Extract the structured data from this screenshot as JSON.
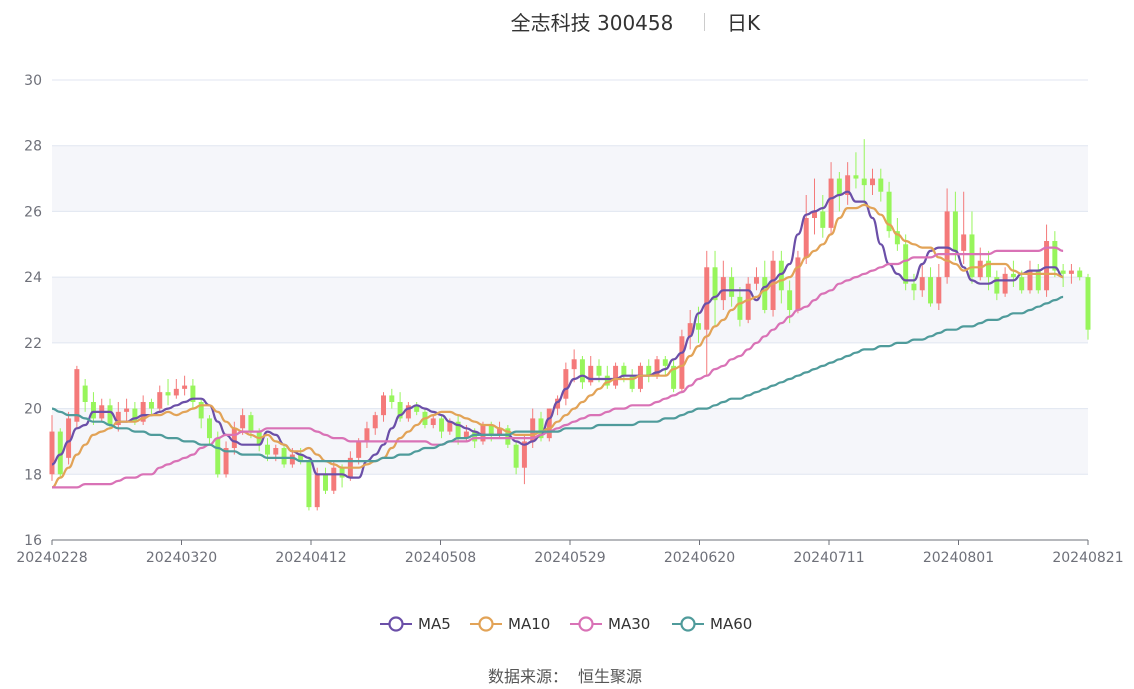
{
  "header": {
    "title": "全志科技 300458",
    "subtitle": "日K"
  },
  "footer": {
    "source_label": "数据来源：",
    "source_name": "恒生聚源"
  },
  "colors": {
    "up": "#f47a7a",
    "down": "#97f55b",
    "MA5": "#6b4fa8",
    "MA10": "#e2a357",
    "MA30": "#d972b6",
    "MA60": "#4f9b9b",
    "band": "#f5f6fa",
    "grid": "#e0e6f1",
    "axis": "#6e7079"
  },
  "chart_data": {
    "type": "candlestick",
    "ylim": [
      16,
      30
    ],
    "yticks": [
      16,
      18,
      20,
      22,
      24,
      26,
      28,
      30
    ],
    "xticks": [
      "20240228",
      "20240320",
      "20240412",
      "20240508",
      "20240529",
      "20240620",
      "20240711",
      "20240801",
      "20240821"
    ],
    "legend": [
      "MA5",
      "MA10",
      "MA30",
      "MA60"
    ],
    "legend_position": "bottom",
    "candles": [
      [
        18.0,
        19.3,
        17.8,
        19.8
      ],
      [
        19.3,
        18.0,
        17.9,
        19.4
      ],
      [
        18.5,
        19.7,
        18.3,
        19.9
      ],
      [
        19.6,
        21.2,
        19.4,
        21.3
      ],
      [
        20.7,
        20.2,
        19.9,
        20.9
      ],
      [
        20.2,
        19.7,
        19.5,
        20.5
      ],
      [
        19.7,
        20.1,
        19.6,
        20.3
      ],
      [
        20.1,
        19.5,
        19.4,
        20.3
      ],
      [
        19.5,
        19.9,
        19.3,
        20.2
      ],
      [
        19.9,
        20.0,
        19.6,
        20.3
      ],
      [
        20.0,
        19.6,
        19.5,
        20.2
      ],
      [
        19.6,
        20.2,
        19.5,
        20.4
      ],
      [
        20.2,
        20.0,
        19.8,
        20.3
      ],
      [
        20.0,
        20.5,
        19.9,
        20.7
      ],
      [
        20.5,
        20.4,
        20.1,
        20.9
      ],
      [
        20.4,
        20.6,
        20.3,
        20.9
      ],
      [
        20.6,
        20.7,
        20.4,
        21.0
      ],
      [
        20.7,
        20.2,
        20.0,
        20.9
      ],
      [
        20.2,
        19.7,
        19.4,
        20.3
      ],
      [
        19.7,
        19.1,
        18.9,
        19.8
      ],
      [
        19.1,
        18.0,
        17.9,
        19.3
      ],
      [
        18.0,
        18.8,
        17.9,
        19.0
      ],
      [
        18.8,
        19.4,
        18.6,
        19.6
      ],
      [
        19.4,
        19.8,
        19.2,
        20.0
      ],
      [
        19.8,
        19.3,
        19.1,
        19.9
      ],
      [
        19.3,
        18.9,
        18.7,
        19.4
      ],
      [
        18.9,
        18.6,
        18.4,
        19.1
      ],
      [
        18.6,
        18.8,
        18.4,
        18.9
      ],
      [
        18.8,
        18.3,
        18.2,
        18.9
      ],
      [
        18.3,
        18.6,
        18.2,
        18.8
      ],
      [
        18.6,
        18.4,
        18.3,
        18.8
      ],
      [
        18.4,
        17.0,
        16.9,
        18.5
      ],
      [
        17.0,
        18.0,
        16.9,
        18.2
      ],
      [
        18.0,
        17.5,
        17.4,
        18.2
      ],
      [
        17.5,
        18.2,
        17.4,
        18.4
      ],
      [
        18.2,
        17.9,
        17.6,
        18.3
      ],
      [
        17.9,
        18.5,
        17.8,
        18.7
      ],
      [
        18.5,
        19.0,
        18.3,
        19.1
      ],
      [
        19.0,
        19.4,
        18.8,
        19.6
      ],
      [
        19.4,
        19.8,
        19.2,
        19.9
      ],
      [
        19.8,
        20.4,
        19.6,
        20.5
      ],
      [
        20.4,
        20.2,
        20.0,
        20.6
      ],
      [
        20.2,
        19.7,
        19.6,
        20.5
      ],
      [
        19.7,
        20.1,
        19.6,
        20.2
      ],
      [
        20.1,
        19.9,
        19.8,
        20.2
      ],
      [
        19.9,
        19.5,
        19.4,
        20.0
      ],
      [
        19.5,
        19.7,
        19.4,
        19.8
      ],
      [
        19.7,
        19.3,
        19.1,
        19.8
      ],
      [
        19.3,
        19.6,
        19.2,
        19.7
      ],
      [
        19.6,
        19.1,
        18.9,
        19.8
      ],
      [
        19.1,
        19.3,
        19.0,
        19.5
      ],
      [
        19.3,
        19.0,
        18.8,
        19.4
      ],
      [
        19.0,
        19.5,
        18.9,
        19.6
      ],
      [
        19.5,
        19.2,
        19.0,
        19.6
      ],
      [
        19.2,
        19.4,
        19.1,
        19.6
      ],
      [
        19.4,
        18.9,
        18.8,
        19.5
      ],
      [
        18.9,
        18.2,
        18.0,
        19.0
      ],
      [
        18.2,
        19.0,
        17.7,
        19.2
      ],
      [
        19.0,
        19.7,
        18.8,
        20.0
      ],
      [
        19.7,
        19.1,
        19.0,
        19.9
      ],
      [
        19.1,
        20.0,
        19.0,
        20.0
      ],
      [
        20.0,
        20.3,
        19.8,
        20.4
      ],
      [
        20.3,
        21.2,
        20.1,
        21.4
      ],
      [
        21.2,
        21.5,
        20.8,
        21.8
      ],
      [
        21.5,
        20.8,
        20.6,
        21.6
      ],
      [
        20.8,
        21.3,
        20.7,
        21.6
      ],
      [
        21.3,
        21.0,
        20.8,
        21.5
      ],
      [
        21.0,
        20.7,
        20.6,
        21.3
      ],
      [
        20.7,
        21.3,
        20.6,
        21.4
      ],
      [
        21.3,
        21.0,
        20.8,
        21.4
      ],
      [
        21.0,
        20.6,
        20.5,
        21.2
      ],
      [
        20.6,
        21.3,
        20.5,
        21.4
      ],
      [
        21.3,
        21.0,
        20.8,
        21.5
      ],
      [
        21.0,
        21.5,
        20.9,
        21.6
      ],
      [
        21.5,
        21.3,
        21.0,
        21.6
      ],
      [
        21.3,
        20.6,
        20.5,
        21.5
      ],
      [
        20.6,
        22.2,
        20.5,
        22.4
      ],
      [
        22.2,
        22.6,
        21.8,
        23.0
      ],
      [
        22.6,
        22.4,
        22.0,
        23.1
      ],
      [
        22.4,
        24.3,
        21.0,
        24.8
      ],
      [
        24.3,
        23.3,
        22.5,
        24.8
      ],
      [
        23.3,
        24.0,
        23.0,
        24.5
      ],
      [
        24.0,
        23.4,
        23.1,
        24.3
      ],
      [
        23.4,
        22.7,
        22.5,
        23.7
      ],
      [
        22.7,
        23.8,
        22.6,
        24.0
      ],
      [
        23.8,
        24.0,
        23.6,
        24.3
      ],
      [
        24.0,
        23.0,
        22.9,
        24.5
      ],
      [
        23.0,
        24.5,
        22.8,
        24.8
      ],
      [
        24.5,
        23.6,
        23.2,
        24.8
      ],
      [
        23.6,
        23.0,
        22.6,
        23.9
      ],
      [
        23.0,
        24.6,
        22.9,
        24.8
      ],
      [
        24.6,
        25.8,
        24.4,
        26.5
      ],
      [
        25.8,
        26.0,
        25.3,
        27.0
      ],
      [
        26.0,
        25.5,
        25.2,
        26.5
      ],
      [
        25.5,
        27.0,
        25.3,
        27.5
      ],
      [
        27.0,
        26.5,
        26.0,
        27.2
      ],
      [
        26.5,
        27.1,
        26.2,
        27.5
      ],
      [
        27.1,
        27.0,
        26.7,
        27.8
      ],
      [
        27.0,
        26.8,
        26.2,
        28.2
      ],
      [
        26.8,
        27.0,
        26.5,
        27.3
      ],
      [
        27.0,
        26.6,
        26.3,
        27.3
      ],
      [
        26.6,
        25.4,
        25.2,
        26.9
      ],
      [
        25.4,
        25.0,
        24.8,
        25.8
      ],
      [
        25.0,
        23.8,
        23.6,
        25.3
      ],
      [
        23.8,
        23.6,
        23.3,
        24.1
      ],
      [
        23.6,
        24.0,
        23.4,
        24.4
      ],
      [
        24.0,
        23.2,
        23.1,
        24.3
      ],
      [
        23.2,
        24.0,
        23.0,
        24.4
      ],
      [
        24.0,
        26.0,
        23.8,
        26.7
      ],
      [
        26.0,
        24.8,
        24.5,
        26.6
      ],
      [
        24.8,
        25.3,
        24.4,
        26.6
      ],
      [
        25.3,
        24.0,
        23.8,
        26.0
      ],
      [
        24.0,
        24.5,
        23.9,
        24.9
      ],
      [
        24.5,
        24.0,
        23.6,
        24.8
      ],
      [
        24.0,
        23.5,
        23.3,
        24.2
      ],
      [
        23.5,
        24.1,
        23.4,
        24.3
      ],
      [
        24.1,
        24.0,
        23.7,
        24.5
      ],
      [
        24.0,
        23.6,
        23.5,
        24.2
      ],
      [
        23.6,
        24.2,
        23.5,
        24.5
      ],
      [
        24.2,
        23.6,
        23.5,
        24.4
      ],
      [
        23.6,
        25.1,
        23.4,
        25.6
      ],
      [
        25.1,
        24.2,
        24.0,
        25.4
      ],
      [
        24.2,
        24.1,
        23.7,
        24.4
      ],
      [
        24.1,
        24.2,
        23.8,
        24.4
      ],
      [
        24.2,
        24.0,
        23.9,
        24.3
      ],
      [
        24.0,
        22.4,
        22.1,
        24.1
      ]
    ],
    "MA5": [
      18.3,
      18.6,
      19.0,
      19.4,
      19.5,
      19.9,
      19.9,
      19.9,
      19.6,
      19.6,
      19.7,
      19.8,
      19.8,
      19.9,
      20.0,
      20.1,
      20.2,
      20.3,
      20.3,
      20.1,
      19.6,
      19.2,
      19.0,
      18.9,
      18.9,
      18.9,
      19.3,
      19.2,
      18.9,
      18.7,
      18.6,
      18.5,
      18.0,
      18.0,
      18.0,
      18.0,
      17.9,
      17.9,
      18.4,
      18.6,
      18.9,
      19.4,
      19.8,
      20.0,
      20.1,
      20.0,
      19.9,
      19.8,
      19.6,
      19.5,
      19.4,
      19.3,
      19.2,
      19.2,
      19.2,
      19.2,
      19.0,
      18.9,
      19.0,
      19.2,
      19.7,
      20.2,
      20.6,
      20.9,
      21.0,
      20.9,
      20.9,
      20.9,
      20.9,
      21.0,
      21.0,
      21.0,
      21.0,
      21.1,
      21.2,
      21.5,
      21.7,
      22.2,
      22.9,
      23.2,
      23.4,
      23.6,
      23.6,
      23.6,
      23.6,
      23.3,
      23.7,
      23.9,
      24.1,
      24.4,
      25.3,
      25.9,
      26.0,
      26.1,
      26.4,
      26.5,
      26.6,
      26.3,
      26.3,
      25.8,
      25.0,
      24.4,
      24.1,
      23.9,
      23.9,
      24.4,
      24.8,
      24.9,
      24.9,
      24.8,
      24.3,
      23.9,
      23.8,
      23.8,
      23.9,
      23.9,
      23.9,
      24.1,
      24.2,
      24.2,
      24.3,
      24.3,
      24.0
    ],
    "MA10": [
      17.6,
      17.9,
      18.2,
      18.6,
      18.9,
      19.2,
      19.3,
      19.4,
      19.6,
      19.6,
      19.6,
      19.7,
      19.8,
      19.8,
      19.9,
      19.8,
      19.9,
      20.0,
      20.1,
      20.1,
      19.9,
      19.6,
      19.4,
      19.3,
      19.2,
      19.1,
      19.2,
      19.0,
      18.9,
      18.7,
      18.7,
      18.8,
      18.6,
      18.4,
      18.3,
      18.2,
      18.2,
      18.2,
      18.3,
      18.4,
      18.5,
      18.8,
      19.1,
      19.3,
      19.5,
      19.7,
      19.8,
      19.9,
      19.9,
      19.8,
      19.7,
      19.6,
      19.5,
      19.5,
      19.4,
      19.3,
      19.2,
      19.2,
      19.2,
      19.3,
      19.4,
      19.6,
      19.8,
      20.0,
      20.2,
      20.4,
      20.6,
      20.8,
      20.9,
      20.9,
      20.9,
      21.0,
      21.0,
      21.0,
      21.0,
      21.2,
      21.3,
      21.6,
      21.9,
      22.2,
      22.5,
      22.7,
      23.0,
      23.2,
      23.3,
      23.4,
      23.6,
      23.8,
      23.9,
      24.0,
      24.3,
      24.6,
      24.8,
      25.0,
      25.3,
      25.8,
      26.1,
      26.1,
      26.2,
      26.1,
      25.9,
      25.6,
      25.3,
      25.1,
      25.0,
      24.9,
      24.9,
      24.6,
      24.5,
      24.4,
      24.2,
      24.3,
      24.3,
      24.4,
      24.4,
      24.4,
      24.2,
      24.1,
      24.1,
      24.1,
      24.1,
      24.1,
      24.0
    ],
    "MA30": [
      17.6,
      17.6,
      17.6,
      17.6,
      17.7,
      17.7,
      17.7,
      17.7,
      17.8,
      17.9,
      17.9,
      18.0,
      18.0,
      18.2,
      18.3,
      18.4,
      18.5,
      18.6,
      18.8,
      18.9,
      19.1,
      19.2,
      19.2,
      19.3,
      19.3,
      19.3,
      19.4,
      19.4,
      19.4,
      19.4,
      19.4,
      19.4,
      19.3,
      19.2,
      19.1,
      19.1,
      19.0,
      19.0,
      19.0,
      19.0,
      19.0,
      19.0,
      19.0,
      19.0,
      19.0,
      19.0,
      18.9,
      18.9,
      19.0,
      19.0,
      19.0,
      19.1,
      19.1,
      19.1,
      19.1,
      19.1,
      19.1,
      19.1,
      19.1,
      19.2,
      19.3,
      19.4,
      19.5,
      19.6,
      19.7,
      19.8,
      19.8,
      19.9,
      20.0,
      20.0,
      20.1,
      20.1,
      20.1,
      20.2,
      20.3,
      20.4,
      20.5,
      20.7,
      20.9,
      21.0,
      21.2,
      21.3,
      21.5,
      21.6,
      21.8,
      22.0,
      22.2,
      22.4,
      22.6,
      22.8,
      23.0,
      23.1,
      23.3,
      23.5,
      23.6,
      23.8,
      23.9,
      24.0,
      24.1,
      24.2,
      24.3,
      24.4,
      24.4,
      24.5,
      24.6,
      24.6,
      24.6,
      24.7,
      24.7,
      24.7,
      24.7,
      24.7,
      24.7,
      24.7,
      24.8,
      24.8,
      24.8,
      24.8,
      24.8,
      24.8,
      24.9,
      24.9,
      24.8
    ],
    "MA60": [
      20.0,
      19.9,
      19.8,
      19.8,
      19.7,
      19.6,
      19.6,
      19.5,
      19.4,
      19.4,
      19.3,
      19.3,
      19.2,
      19.2,
      19.1,
      19.1,
      19.0,
      19.0,
      18.9,
      18.9,
      18.8,
      18.7,
      18.7,
      18.6,
      18.6,
      18.6,
      18.5,
      18.5,
      18.5,
      18.5,
      18.4,
      18.4,
      18.4,
      18.4,
      18.4,
      18.4,
      18.4,
      18.4,
      18.4,
      18.4,
      18.5,
      18.5,
      18.6,
      18.6,
      18.7,
      18.8,
      18.8,
      18.9,
      19.0,
      19.1,
      19.1,
      19.2,
      19.2,
      19.2,
      19.2,
      19.2,
      19.3,
      19.3,
      19.3,
      19.3,
      19.3,
      19.3,
      19.4,
      19.4,
      19.4,
      19.4,
      19.5,
      19.5,
      19.5,
      19.5,
      19.5,
      19.6,
      19.6,
      19.6,
      19.7,
      19.7,
      19.8,
      19.9,
      20.0,
      20.0,
      20.1,
      20.2,
      20.3,
      20.3,
      20.4,
      20.5,
      20.6,
      20.7,
      20.8,
      20.9,
      21.0,
      21.1,
      21.2,
      21.3,
      21.4,
      21.5,
      21.6,
      21.7,
      21.8,
      21.8,
      21.9,
      21.9,
      22.0,
      22.0,
      22.1,
      22.1,
      22.2,
      22.3,
      22.4,
      22.4,
      22.5,
      22.5,
      22.6,
      22.7,
      22.7,
      22.8,
      22.9,
      22.9,
      23.0,
      23.1,
      23.2,
      23.3,
      23.4
    ]
  }
}
